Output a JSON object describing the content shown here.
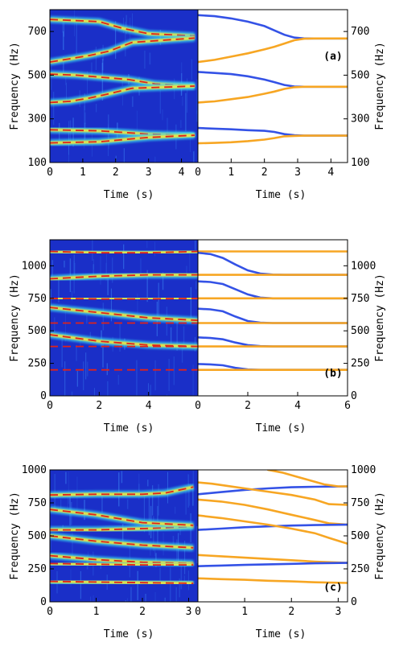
{
  "colors": {
    "blue": "#3452e6",
    "orange": "#f7a623",
    "spec_bg": "#1a2fc8",
    "hot": "#e0221a"
  },
  "chart_data": [
    {
      "panel": "(a)",
      "type": "line",
      "xlabel": "Time (s)",
      "ylabel": "Frequency (Hz)",
      "spectrogram_xlim": [
        0,
        4.5
      ],
      "model_xlim": [
        0,
        4.5
      ],
      "ylim": [
        100,
        800
      ],
      "spectrogram_xticks": [
        "0",
        "1",
        "2",
        "3",
        "4"
      ],
      "model_xticks": [
        "0",
        "1",
        "2",
        "3",
        "4"
      ],
      "yticks": [
        "100",
        "300",
        "500",
        "700"
      ],
      "ytick_values": [
        100,
        300,
        500,
        700
      ],
      "spectrogram_ridges": [
        {
          "x": [
            0,
            0.8,
            1.5,
            2.2,
            3.0,
            4.4
          ],
          "y": [
            755,
            750,
            745,
            715,
            690,
            680
          ]
        },
        {
          "x": [
            0,
            0.6,
            1.2,
            1.8,
            2.5,
            4.4
          ],
          "y": [
            560,
            575,
            590,
            610,
            650,
            670
          ]
        },
        {
          "x": [
            0,
            0.8,
            1.6,
            2.4,
            3.2,
            4.4
          ],
          "y": [
            505,
            500,
            490,
            480,
            460,
            450
          ]
        },
        {
          "x": [
            0,
            0.6,
            1.2,
            1.8,
            2.5,
            4.4
          ],
          "y": [
            375,
            380,
            395,
            415,
            440,
            450
          ]
        },
        {
          "x": [
            0,
            1.5,
            3.0,
            4.4
          ],
          "y": [
            250,
            245,
            230,
            225
          ]
        },
        {
          "x": [
            0,
            1.5,
            3.0,
            4.4
          ],
          "y": [
            190,
            195,
            215,
            225
          ]
        }
      ],
      "series": [
        {
          "color": "blue",
          "x": [
            0,
            0.5,
            1,
            1.5,
            2,
            2.3,
            2.6,
            2.9,
            3.2,
            3.5,
            4.5
          ],
          "y": [
            775,
            770,
            760,
            745,
            725,
            705,
            685,
            672,
            668,
            668,
            668
          ]
        },
        {
          "color": "orange",
          "x": [
            0,
            0.5,
            1,
            1.5,
            2,
            2.3,
            2.6,
            2.9,
            3.2,
            3.5,
            4.5
          ],
          "y": [
            560,
            570,
            585,
            600,
            618,
            630,
            645,
            660,
            667,
            668,
            668
          ]
        },
        {
          "color": "blue",
          "x": [
            0,
            0.5,
            1,
            1.5,
            2,
            2.3,
            2.6,
            2.9,
            3.2,
            4.5
          ],
          "y": [
            515,
            510,
            505,
            495,
            480,
            468,
            455,
            448,
            447,
            447
          ]
        },
        {
          "color": "orange",
          "x": [
            0,
            0.5,
            1,
            1.5,
            2,
            2.3,
            2.6,
            2.9,
            3.2,
            4.5
          ],
          "y": [
            375,
            380,
            390,
            400,
            415,
            425,
            437,
            445,
            447,
            447
          ]
        },
        {
          "color": "blue",
          "x": [
            0,
            0.5,
            1,
            1.5,
            2,
            2.3,
            2.6,
            2.9,
            3.2,
            4.5
          ],
          "y": [
            258,
            255,
            252,
            248,
            245,
            240,
            230,
            225,
            223,
            223
          ]
        },
        {
          "color": "orange",
          "x": [
            0,
            0.5,
            1,
            1.5,
            2,
            2.3,
            2.6,
            2.9,
            3.2,
            4.5
          ],
          "y": [
            188,
            190,
            193,
            198,
            205,
            212,
            220,
            222,
            223,
            223
          ]
        }
      ]
    },
    {
      "panel": "(b)",
      "type": "line",
      "xlabel": "Time (s)",
      "ylabel": "Frequency (Hz)",
      "spectrogram_xlim": [
        0,
        6
      ],
      "model_xlim": [
        0,
        6
      ],
      "ylim": [
        0,
        1200
      ],
      "spectrogram_xticks": [
        "0",
        "2",
        "4",
        "0"
      ],
      "model_xticks": [
        "2",
        "4",
        "6"
      ],
      "yticks": [
        "0",
        "250",
        "500",
        "750",
        "1000"
      ],
      "ytick_values": [
        0,
        250,
        500,
        750,
        1000
      ],
      "spectrogram_ridges": [
        {
          "x": [
            0,
            2,
            4,
            6
          ],
          "y": [
            1110,
            1100,
            1100,
            1110
          ]
        },
        {
          "x": [
            0,
            2,
            4,
            6
          ],
          "y": [
            900,
            920,
            930,
            930
          ]
        },
        {
          "x": [
            0,
            2,
            4,
            6
          ],
          "y": [
            750,
            745,
            745,
            750
          ]
        },
        {
          "x": [
            0,
            2,
            4,
            6
          ],
          "y": [
            680,
            640,
            600,
            580
          ]
        },
        {
          "x": [
            0,
            2,
            4,
            6
          ],
          "y": [
            560,
            560,
            560,
            560
          ]
        },
        {
          "x": [
            0,
            2,
            4,
            6
          ],
          "y": [
            470,
            420,
            390,
            380
          ]
        },
        {
          "x": [
            0,
            2,
            4,
            6
          ],
          "y": [
            380,
            380,
            380,
            380
          ]
        },
        {
          "x": [
            0,
            2,
            4,
            6
          ],
          "y": [
            200,
            200,
            200,
            200
          ]
        }
      ],
      "series": [
        {
          "color": "orange",
          "x": [
            0,
            6
          ],
          "y": [
            1110,
            1110
          ]
        },
        {
          "color": "blue",
          "x": [
            0,
            0.5,
            1,
            1.5,
            2,
            2.5,
            3,
            3.5,
            6
          ],
          "y": [
            1100,
            1090,
            1060,
            1010,
            965,
            940,
            932,
            930,
            930
          ]
        },
        {
          "color": "orange",
          "x": [
            0,
            6
          ],
          "y": [
            930,
            930
          ]
        },
        {
          "color": "blue",
          "x": [
            0,
            0.5,
            1,
            1.5,
            2,
            2.5,
            3,
            6
          ],
          "y": [
            880,
            875,
            860,
            820,
            780,
            755,
            750,
            750
          ]
        },
        {
          "color": "orange",
          "x": [
            0,
            6
          ],
          "y": [
            750,
            750
          ]
        },
        {
          "color": "blue",
          "x": [
            0,
            0.5,
            1,
            1.5,
            2,
            2.5,
            3,
            6
          ],
          "y": [
            670,
            665,
            650,
            610,
            575,
            562,
            560,
            560
          ]
        },
        {
          "color": "orange",
          "x": [
            0,
            6
          ],
          "y": [
            560,
            560
          ]
        },
        {
          "color": "blue",
          "x": [
            0,
            0.5,
            1,
            1.5,
            2,
            2.5,
            3,
            6
          ],
          "y": [
            450,
            445,
            435,
            410,
            390,
            382,
            380,
            380
          ]
        },
        {
          "color": "orange",
          "x": [
            0,
            6
          ],
          "y": [
            380,
            380
          ]
        },
        {
          "color": "blue",
          "x": [
            0,
            0.5,
            1,
            1.5,
            2,
            2.5,
            3,
            6
          ],
          "y": [
            245,
            242,
            235,
            215,
            203,
            200,
            200,
            200
          ]
        },
        {
          "color": "orange",
          "x": [
            0,
            6
          ],
          "y": [
            200,
            200
          ]
        }
      ]
    },
    {
      "panel": "(c)",
      "type": "line",
      "xlabel": "Time (s)",
      "ylabel": "Frequency (Hz)",
      "spectrogram_xlim": [
        0,
        3.2
      ],
      "model_xlim": [
        0,
        3.2
      ],
      "ylim": [
        0,
        1000
      ],
      "spectrogram_xticks": [
        "0",
        "1",
        "2",
        "3"
      ],
      "model_xticks": [
        "0",
        "1",
        "2",
        "3"
      ],
      "yticks": [
        "0",
        "250",
        "500",
        "750",
        "1000"
      ],
      "ytick_values": [
        0,
        250,
        500,
        750,
        1000
      ],
      "spectrogram_ridges": [
        {
          "x": [
            0,
            1,
            2,
            2.5,
            3.1
          ],
          "y": [
            810,
            815,
            815,
            825,
            870
          ]
        },
        {
          "x": [
            0,
            1,
            2,
            3.1
          ],
          "y": [
            545,
            545,
            555,
            570
          ]
        },
        {
          "x": [
            0,
            1,
            2,
            3.1
          ],
          "y": [
            350,
            320,
            300,
            290
          ]
        },
        {
          "x": [
            0,
            1,
            2,
            3.1
          ],
          "y": [
            290,
            285,
            280,
            280
          ]
        },
        {
          "x": [
            0,
            1,
            2,
            3.1
          ],
          "y": [
            155,
            150,
            145,
            140
          ]
        },
        {
          "x": [
            0,
            1,
            2,
            3.1
          ],
          "y": [
            700,
            660,
            600,
            580
          ]
        },
        {
          "x": [
            0,
            1,
            2,
            3.1
          ],
          "y": [
            500,
            460,
            430,
            410
          ]
        }
      ],
      "series": [
        {
          "color": "blue",
          "x": [
            0,
            0.5,
            1,
            1.5,
            2,
            2.5,
            3.2
          ],
          "y": [
            815,
            832,
            848,
            860,
            868,
            872,
            875
          ]
        },
        {
          "color": "orange",
          "x": [
            1.5,
            1.8,
            2.1,
            2.4,
            2.7,
            3,
            3.2
          ],
          "y": [
            1000,
            980,
            950,
            920,
            890,
            875,
            875
          ]
        },
        {
          "color": "orange",
          "x": [
            0,
            0.3,
            0.6,
            1,
            1.5,
            2,
            2.5,
            2.8,
            3.2
          ],
          "y": [
            905,
            895,
            880,
            860,
            835,
            810,
            775,
            740,
            735
          ]
        },
        {
          "color": "orange",
          "x": [
            0,
            0.5,
            1,
            1.5,
            2,
            2.5,
            2.8,
            3.2
          ],
          "y": [
            775,
            760,
            735,
            700,
            660,
            620,
            595,
            585
          ]
        },
        {
          "color": "blue",
          "x": [
            0,
            0.5,
            1,
            1.5,
            2,
            2.5,
            3.2
          ],
          "y": [
            545,
            555,
            565,
            572,
            578,
            582,
            585
          ]
        },
        {
          "color": "orange",
          "x": [
            0,
            0.5,
            1,
            1.5,
            2,
            2.5,
            2.8,
            3.2
          ],
          "y": [
            655,
            635,
            610,
            585,
            555,
            520,
            485,
            440
          ]
        },
        {
          "color": "orange",
          "x": [
            0,
            0.5,
            1,
            1.5,
            2,
            2.5,
            3.2
          ],
          "y": [
            355,
            345,
            335,
            325,
            315,
            305,
            295
          ]
        },
        {
          "color": "blue",
          "x": [
            0,
            0.5,
            1,
            1.5,
            2,
            2.5,
            3.2
          ],
          "y": [
            270,
            275,
            280,
            284,
            288,
            292,
            295
          ]
        },
        {
          "color": "orange",
          "x": [
            0,
            0.5,
            1,
            1.5,
            2,
            2.5,
            3.2
          ],
          "y": [
            178,
            172,
            167,
            160,
            155,
            148,
            143
          ]
        }
      ]
    }
  ]
}
